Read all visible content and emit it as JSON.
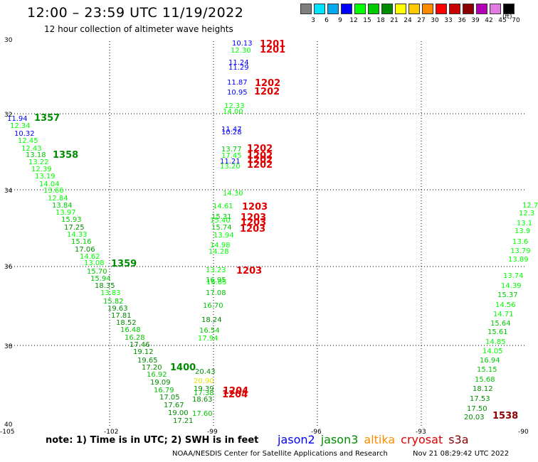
{
  "header": {
    "title": "12:00 – 23:59 UTC 11/19/2022",
    "subtitle": "12 hour collection of altimeter wave heights"
  },
  "legend": {
    "labels": [
      "3",
      "6",
      "9",
      "12",
      "15",
      "18",
      "21",
      "24",
      "27",
      "30",
      "33",
      "36",
      "39",
      "42",
      "45",
      "70"
    ],
    "colors": [
      "#7f7f7f",
      "#00e5ff",
      "#00a8f0",
      "#0000ff",
      "#00ff00",
      "#00c800",
      "#008c00",
      "#ffff00",
      "#ffc800",
      "#ff8c00",
      "#ff0000",
      "#c80000",
      "#8c0000",
      "#b400b4",
      "#e07ae0",
      "#000000"
    ],
    "unit": "(ft)"
  },
  "axes": {
    "lat": [
      "30",
      "32",
      "34",
      "36",
      "38",
      "40"
    ],
    "lon": [
      "-105",
      "-102",
      "-99",
      "-96",
      "-93",
      "-90"
    ]
  },
  "footer": {
    "note": "note:  1) Time is in UTC;  2) SWH is in feet",
    "sats": [
      "jason2",
      "jason3",
      "altika",
      "cryosat",
      "s3a"
    ],
    "sat_colors": [
      "#0000ff",
      "#008c00",
      "#ff8c00",
      "#e00000",
      "#8c0000"
    ],
    "credit": "NOAA/NESDIS Center for Satellite Applications and Research",
    "stamp": "Nov 21 08:29:42 UTC 2022"
  },
  "map": {
    "revs": [
      {
        "t": "1201",
        "c": "#e00000"
      },
      {
        "t": "1201",
        "c": "#e00000"
      },
      {
        "t": "1202",
        "c": "#e00000"
      },
      {
        "t": "1202",
        "c": "#e00000"
      },
      {
        "t": "1202",
        "c": "#e00000"
      },
      {
        "t": "1202",
        "c": "#e00000"
      },
      {
        "t": "1202",
        "c": "#e00000"
      },
      {
        "t": "1202",
        "c": "#e00000"
      },
      {
        "t": "1203",
        "c": "#e00000"
      },
      {
        "t": "1203",
        "c": "#e00000"
      },
      {
        "t": "1203",
        "c": "#e00000"
      },
      {
        "t": "1203",
        "c": "#e00000"
      },
      {
        "t": "1203",
        "c": "#e00000"
      },
      {
        "t": "1204",
        "c": "#e00000"
      },
      {
        "t": "1204",
        "c": "#e00000"
      },
      {
        "t": "1357",
        "c": "#008c00"
      },
      {
        "t": "1358",
        "c": "#008c00"
      },
      {
        "t": "1359",
        "c": "#008c00"
      },
      {
        "t": "1400",
        "c": "#008c00"
      },
      {
        "t": "1538",
        "c": "#8c0000"
      }
    ],
    "track_left": [
      {
        "v": "11.94",
        "c": "#0000ff"
      },
      {
        "v": "12.34",
        "c": "#00ff00"
      },
      {
        "v": "10.32",
        "c": "#0000ff"
      },
      {
        "v": "12.45",
        "c": "#00ff00"
      },
      {
        "v": "12.43",
        "c": "#00ff00"
      },
      {
        "v": "13.18",
        "c": "#00c800"
      },
      {
        "v": "13.22",
        "c": "#00ff00"
      },
      {
        "v": "12.39",
        "c": "#00ff00"
      },
      {
        "v": "13.19",
        "c": "#00ff00"
      },
      {
        "v": "14.04",
        "c": "#00ff00"
      },
      {
        "v": "13.66",
        "c": "#00ff00"
      },
      {
        "v": "12.84",
        "c": "#00ff00"
      },
      {
        "v": "13.84",
        "c": "#00c800"
      },
      {
        "v": "13.97",
        "c": "#00ff00"
      },
      {
        "v": "15.93",
        "c": "#00c800"
      },
      {
        "v": "17.25",
        "c": "#008c00"
      },
      {
        "v": "14.33",
        "c": "#00ff00"
      },
      {
        "v": "15.16",
        "c": "#00c800"
      },
      {
        "v": "17.06",
        "c": "#008c00"
      },
      {
        "v": "14.62",
        "c": "#00ff00"
      },
      {
        "v": "13.08",
        "c": "#00ff00"
      },
      {
        "v": "15.70",
        "c": "#00c800"
      },
      {
        "v": "15.94",
        "c": "#00c800"
      },
      {
        "v": "18.35",
        "c": "#008c00"
      },
      {
        "v": "13.83",
        "c": "#00ff00"
      },
      {
        "v": "15.82",
        "c": "#00c800"
      },
      {
        "v": "19.63",
        "c": "#008c00"
      },
      {
        "v": "17.81",
        "c": "#008c00"
      },
      {
        "v": "18.52",
        "c": "#008c00"
      },
      {
        "v": "16.48",
        "c": "#00c800"
      },
      {
        "v": "16.28",
        "c": "#00c800"
      },
      {
        "v": "17.46",
        "c": "#008c00"
      },
      {
        "v": "19.12",
        "c": "#008c00"
      },
      {
        "v": "19.65",
        "c": "#008c00"
      },
      {
        "v": "17.20",
        "c": "#008c00"
      },
      {
        "v": "16.92",
        "c": "#00c800"
      },
      {
        "v": "19.09",
        "c": "#008c00"
      },
      {
        "v": "16.79",
        "c": "#00c800"
      },
      {
        "v": "17.05",
        "c": "#008c00"
      },
      {
        "v": "17.67",
        "c": "#008c00"
      },
      {
        "v": "19.00",
        "c": "#008c00"
      },
      {
        "v": "17.21",
        "c": "#008c00"
      }
    ],
    "track_mid": [
      {
        "v": "10.13",
        "c": "#0000ff"
      },
      {
        "v": "12.30",
        "c": "#00ff00"
      },
      {
        "v": "11.24",
        "c": "#0000ff"
      },
      {
        "v": "11.29",
        "c": "#0000ff"
      },
      {
        "v": "11.87",
        "c": "#0000ff"
      },
      {
        "v": "10.95",
        "c": "#0000ff"
      },
      {
        "v": "12.33",
        "c": "#00ff00"
      },
      {
        "v": "14.00",
        "c": "#00ff00"
      },
      {
        "v": "11.47",
        "c": "#0000ff"
      },
      {
        "v": "10.28",
        "c": "#0000ff"
      },
      {
        "v": "13.77",
        "c": "#00c800"
      },
      {
        "v": "17.45",
        "c": "#00ff00"
      },
      {
        "v": "11.21",
        "c": "#0000ff"
      },
      {
        "v": "13.20",
        "c": "#00ff00"
      },
      {
        "v": "14.30",
        "c": "#00ff00"
      },
      {
        "v": "14.61",
        "c": "#00ff00"
      },
      {
        "v": "15.31",
        "c": "#00c800"
      },
      {
        "v": "15.40",
        "c": "#00ff00"
      },
      {
        "v": "15.74",
        "c": "#00c800"
      },
      {
        "v": "13.94",
        "c": "#00ff00"
      },
      {
        "v": "14.98",
        "c": "#00ff00"
      },
      {
        "v": "14.28",
        "c": "#00ff00"
      },
      {
        "v": "13.23",
        "c": "#00ff00"
      },
      {
        "v": "16.95",
        "c": "#00c800"
      },
      {
        "v": "16.85",
        "c": "#00ff00"
      },
      {
        "v": "17.08",
        "c": "#00c800"
      },
      {
        "v": "16.70",
        "c": "#00c800"
      },
      {
        "v": "18.24",
        "c": "#008c00"
      },
      {
        "v": "16.54",
        "c": "#00c800"
      },
      {
        "v": "17.94",
        "c": "#00ff00"
      },
      {
        "v": "20.43",
        "c": "#008c00"
      },
      {
        "v": "20.90",
        "c": "#e6e600"
      },
      {
        "v": "19.39",
        "c": "#008c00"
      },
      {
        "v": "17.38",
        "c": "#00c800"
      },
      {
        "v": "18.63",
        "c": "#008c00"
      },
      {
        "v": "17.60",
        "c": "#00c800"
      }
    ],
    "track_right": [
      {
        "v": "12.7",
        "c": "#00ff00"
      },
      {
        "v": "12.3",
        "c": "#00ff00"
      },
      {
        "v": "13.1",
        "c": "#00ff00"
      },
      {
        "v": "13.9",
        "c": "#00ff00"
      },
      {
        "v": "13.6",
        "c": "#00ff00"
      },
      {
        "v": "13.79",
        "c": "#00ff00"
      },
      {
        "v": "13.89",
        "c": "#00ff00"
      },
      {
        "v": "13.74",
        "c": "#00ff00"
      },
      {
        "v": "14.39",
        "c": "#00ff00"
      },
      {
        "v": "15.37",
        "c": "#00c800"
      },
      {
        "v": "14.56",
        "c": "#00ff00"
      },
      {
        "v": "14.71",
        "c": "#00ff00"
      },
      {
        "v": "15.64",
        "c": "#00c800"
      },
      {
        "v": "15.61",
        "c": "#00c800"
      },
      {
        "v": "14.85",
        "c": "#00ff00"
      },
      {
        "v": "14.05",
        "c": "#00ff00"
      },
      {
        "v": "16.94",
        "c": "#00c800"
      },
      {
        "v": "15.15",
        "c": "#00c800"
      },
      {
        "v": "15.68",
        "c": "#00c800"
      },
      {
        "v": "18.12",
        "c": "#008c00"
      },
      {
        "v": "17.53",
        "c": "#008c00"
      },
      {
        "v": "17.50",
        "c": "#008c00"
      },
      {
        "v": "20.03",
        "c": "#008c00"
      }
    ]
  }
}
